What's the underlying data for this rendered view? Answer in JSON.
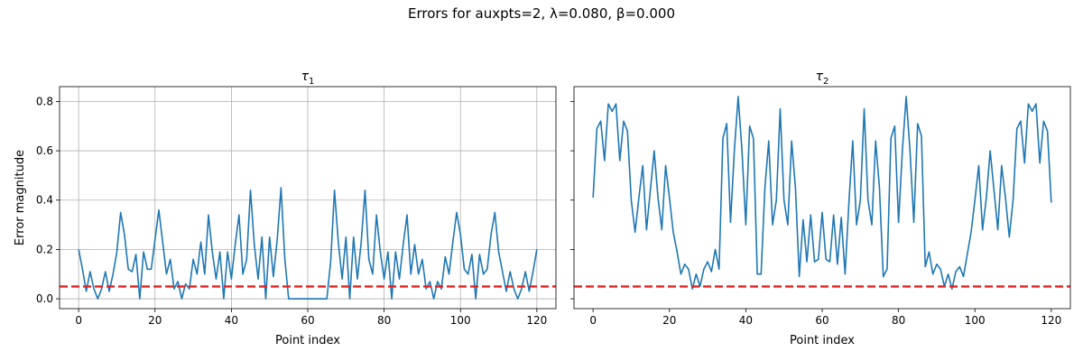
{
  "figure": {
    "suptitle": "Errors for auxpts=2, λ=0.080, β=0.000"
  },
  "chart_data": [
    {
      "type": "line",
      "title_main": "τ",
      "title_sub": "1",
      "xlabel": "Point index",
      "ylabel": "Error magnitude",
      "xlim": [
        -5,
        125
      ],
      "ylim": [
        -0.04,
        0.86
      ],
      "xticks": [
        0,
        20,
        40,
        60,
        80,
        100,
        120
      ],
      "yticks": [
        0.0,
        0.2,
        0.4,
        0.6,
        0.8
      ],
      "grid": true,
      "threshold": 0.05,
      "threshold_color": "#e8211d",
      "line_color": "#1f77b4",
      "values": [
        0.2,
        0.12,
        0.03,
        0.11,
        0.04,
        0.0,
        0.04,
        0.11,
        0.03,
        0.1,
        0.19,
        0.35,
        0.26,
        0.12,
        0.11,
        0.18,
        0.0,
        0.19,
        0.12,
        0.12,
        0.24,
        0.36,
        0.23,
        0.1,
        0.16,
        0.04,
        0.07,
        0.0,
        0.06,
        0.04,
        0.16,
        0.1,
        0.23,
        0.1,
        0.34,
        0.19,
        0.08,
        0.19,
        0.0,
        0.19,
        0.08,
        0.22,
        0.34,
        0.1,
        0.16,
        0.44,
        0.22,
        0.08,
        0.25,
        0.0,
        0.25,
        0.09,
        0.24,
        0.45,
        0.16,
        0.0,
        0.0,
        0.0,
        0.0,
        0.0,
        0.0,
        0.0,
        0.0,
        0.0,
        0.0,
        0.0,
        0.15,
        0.44,
        0.23,
        0.08,
        0.25,
        0.0,
        0.25,
        0.08,
        0.23,
        0.44,
        0.16,
        0.1,
        0.34,
        0.19,
        0.08,
        0.19,
        0.0,
        0.19,
        0.08,
        0.22,
        0.34,
        0.1,
        0.22,
        0.1,
        0.16,
        0.04,
        0.07,
        0.0,
        0.07,
        0.04,
        0.17,
        0.1,
        0.23,
        0.35,
        0.26,
        0.12,
        0.1,
        0.18,
        0.0,
        0.18,
        0.1,
        0.12,
        0.26,
        0.35,
        0.19,
        0.11,
        0.03,
        0.11,
        0.04,
        0.0,
        0.04,
        0.11,
        0.03,
        0.11,
        0.2
      ]
    },
    {
      "type": "line",
      "title_main": "τ",
      "title_sub": "2",
      "xlabel": "Point index",
      "ylabel": "",
      "xlim": [
        -5,
        125
      ],
      "ylim": [
        -0.04,
        0.86
      ],
      "xticks": [
        0,
        20,
        40,
        60,
        80,
        100,
        120
      ],
      "yticks": [
        0.0,
        0.2,
        0.4,
        0.6,
        0.8
      ],
      "grid": false,
      "threshold": 0.05,
      "threshold_color": "#e8211d",
      "line_color": "#1f77b4",
      "values": [
        0.41,
        0.69,
        0.72,
        0.56,
        0.79,
        0.76,
        0.79,
        0.56,
        0.72,
        0.68,
        0.4,
        0.27,
        0.41,
        0.54,
        0.28,
        0.44,
        0.6,
        0.41,
        0.28,
        0.54,
        0.41,
        0.27,
        0.19,
        0.1,
        0.14,
        0.12,
        0.04,
        0.1,
        0.05,
        0.12,
        0.15,
        0.11,
        0.2,
        0.12,
        0.65,
        0.71,
        0.31,
        0.6,
        0.82,
        0.6,
        0.3,
        0.7,
        0.65,
        0.1,
        0.1,
        0.45,
        0.64,
        0.3,
        0.4,
        0.77,
        0.4,
        0.3,
        0.64,
        0.45,
        0.09,
        0.32,
        0.15,
        0.34,
        0.15,
        0.16,
        0.35,
        0.16,
        0.15,
        0.34,
        0.14,
        0.33,
        0.1,
        0.39,
        0.64,
        0.3,
        0.4,
        0.77,
        0.4,
        0.3,
        0.64,
        0.45,
        0.09,
        0.12,
        0.65,
        0.7,
        0.31,
        0.6,
        0.82,
        0.6,
        0.31,
        0.71,
        0.66,
        0.13,
        0.19,
        0.1,
        0.14,
        0.12,
        0.05,
        0.1,
        0.04,
        0.11,
        0.13,
        0.09,
        0.18,
        0.27,
        0.4,
        0.54,
        0.28,
        0.41,
        0.6,
        0.44,
        0.28,
        0.54,
        0.41,
        0.25,
        0.4,
        0.69,
        0.72,
        0.55,
        0.79,
        0.76,
        0.79,
        0.55,
        0.72,
        0.68,
        0.39
      ]
    }
  ]
}
